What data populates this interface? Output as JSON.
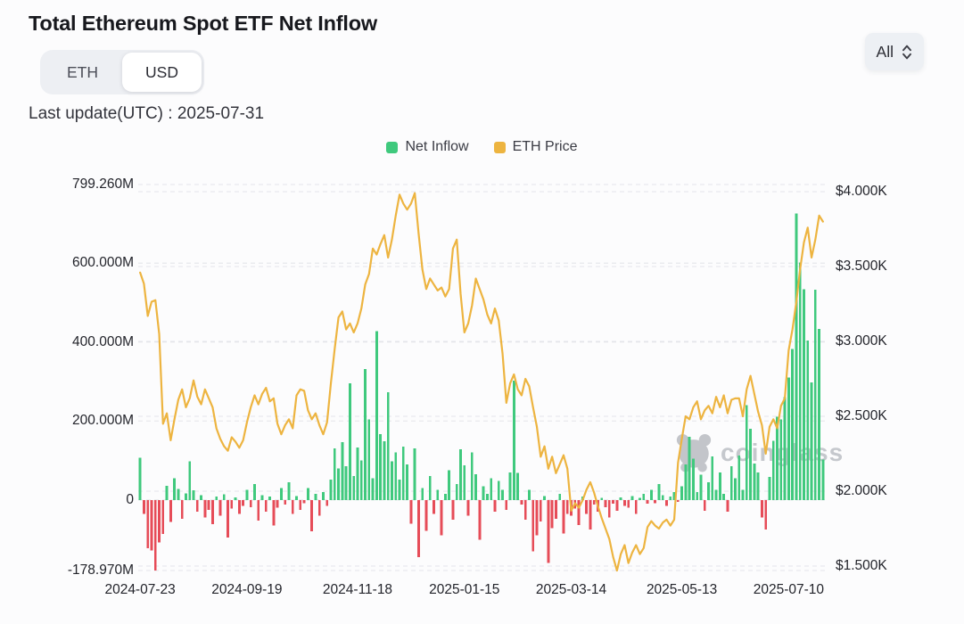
{
  "header": {
    "title": "Total Ethereum Spot ETF Net Inflow",
    "last_update": "Last update(UTC) : 2025-07-31",
    "currency_toggle": {
      "options": [
        "ETH",
        "USD"
      ],
      "selected": "USD"
    },
    "range_select": {
      "value": "All"
    }
  },
  "legend": [
    {
      "label": "Net Inflow",
      "color": "#3fc97d"
    },
    {
      "label": "ETH Price",
      "color": "#edb440"
    }
  ],
  "watermark": {
    "text": "coinglass"
  },
  "chart_data": {
    "type": "combo-bar-line",
    "title": "Total Ethereum Spot ETF Net Inflow",
    "x_axis": {
      "tick_labels": [
        "2024-07-23",
        "2024-09-19",
        "2024-11-18",
        "2025-01-15",
        "2025-03-14",
        "2025-05-13",
        "2025-07-10"
      ],
      "tick_indices": [
        0,
        28,
        57,
        85,
        113,
        142,
        170
      ],
      "note": "daily sessions from 2024-07-23 to 2025-07-31"
    },
    "left_axis": {
      "series": "Net Inflow",
      "unit": "USD, M = millions",
      "max": 799.26,
      "min": -178.97,
      "ticks": [
        {
          "label": "799.260M",
          "value": 799.26
        },
        {
          "label": "600.000M",
          "value": 600
        },
        {
          "label": "400.000M",
          "value": 400
        },
        {
          "label": "200.000M",
          "value": 200
        },
        {
          "label": "0",
          "value": 0
        },
        {
          "label": "-178.970M",
          "value": -178.97
        }
      ]
    },
    "right_axis": {
      "series": "ETH Price",
      "unit": "USD, K = thousands",
      "max": 4000,
      "min": 1500,
      "ticks": [
        {
          "label": "$4.000K",
          "value": 4000
        },
        {
          "label": "$3.500K",
          "value": 3500
        },
        {
          "label": "$3.000K",
          "value": 3000
        },
        {
          "label": "$2.500K",
          "value": 2500
        },
        {
          "label": "$2.000K",
          "value": 2000
        },
        {
          "label": "$1.500K",
          "value": 1500
        }
      ]
    },
    "grid": {
      "style": "dashed",
      "color": "#e3e5ea"
    },
    "series": [
      {
        "name": "Net Inflow",
        "type": "bar",
        "axis": "left",
        "unit": "USD millions",
        "color_positive": "#3fc97d",
        "color_negative": "#e64c58",
        "values": [
          107,
          -35,
          -122,
          -128,
          -179,
          -108,
          -86,
          36,
          -56,
          55,
          28,
          -48,
          16,
          98,
          24,
          -30,
          12,
          -45,
          -25,
          -62,
          8,
          -40,
          14,
          -95,
          -22,
          6,
          -35,
          -15,
          25,
          -18,
          40,
          -52,
          12,
          -30,
          8,
          -65,
          -20,
          30,
          -12,
          45,
          -35,
          10,
          -25,
          -8,
          30,
          -80,
          15,
          -40,
          20,
          -15,
          52,
          131,
          80,
          146,
          85,
          295,
          60,
          133,
          100,
          332,
          204,
          55,
          428,
          167,
          149,
          273,
          98,
          120,
          51,
          135,
          90,
          -60,
          130,
          -145,
          30,
          -78,
          60,
          -35,
          25,
          -90,
          15,
          75,
          -50,
          40,
          128,
          88,
          -40,
          120,
          65,
          -101,
          35,
          15,
          55,
          -30,
          48,
          26,
          -25,
          70,
          302,
          68,
          -12,
          -50,
          25,
          -130,
          -90,
          -55,
          10,
          -160,
          -72,
          -48,
          15,
          -85,
          -35,
          -40,
          -22,
          -64,
          8,
          -35,
          -75,
          -12,
          -30,
          5,
          -18,
          -45,
          -10,
          -28,
          6,
          -15,
          -20,
          10,
          -35,
          5,
          15,
          -10,
          25,
          -8,
          40,
          12,
          -15,
          8,
          20,
          -5,
          35,
          90,
          160,
          105,
          20,
          64,
          -28,
          45,
          110,
          25,
          70,
          15,
          -30,
          85,
          55,
          112,
          25,
          240,
          180,
          92,
          70,
          -45,
          -75,
          58,
          150,
          211,
          204,
          260,
          310,
          383,
          726,
          602,
          534,
          404,
          298,
          533,
          433,
          102
        ]
      },
      {
        "name": "ETH Price",
        "type": "line",
        "axis": "right",
        "unit": "USD",
        "color": "#edb440",
        "values": [
          3460,
          3385,
          3170,
          3265,
          3275,
          3050,
          2450,
          2520,
          2340,
          2480,
          2610,
          2680,
          2560,
          2620,
          2740,
          2630,
          2580,
          2680,
          2620,
          2560,
          2420,
          2350,
          2300,
          2270,
          2360,
          2330,
          2290,
          2340,
          2460,
          2560,
          2640,
          2580,
          2650,
          2690,
          2600,
          2620,
          2450,
          2380,
          2440,
          2480,
          2420,
          2640,
          2680,
          2670,
          2540,
          2480,
          2520,
          2440,
          2380,
          2460,
          2720,
          2950,
          3160,
          3200,
          3080,
          3120,
          3060,
          3120,
          3220,
          3380,
          3450,
          3620,
          3580,
          3650,
          3710,
          3560,
          3680,
          3840,
          3980,
          3920,
          3880,
          3920,
          3990,
          3720,
          3480,
          3350,
          3420,
          3380,
          3340,
          3360,
          3300,
          3350,
          3620,
          3680,
          3320,
          3060,
          3120,
          3240,
          3420,
          3350,
          3280,
          3180,
          3120,
          3220,
          3140,
          2920,
          2590,
          2720,
          2780,
          2680,
          2640,
          2750,
          2700,
          2560,
          2430,
          2230,
          2300,
          2150,
          2230,
          2120,
          2180,
          2240,
          2150,
          1870,
          1920,
          1890,
          1940,
          2010,
          2060,
          1990,
          1900,
          1820,
          1750,
          1680,
          1560,
          1470,
          1580,
          1640,
          1520,
          1590,
          1640,
          1580,
          1620,
          1760,
          1800,
          1770,
          1750,
          1790,
          1810,
          1770,
          1810,
          2190,
          2350,
          2500,
          2480,
          2560,
          2600,
          2480,
          2540,
          2570,
          2520,
          2630,
          2560,
          2640,
          2520,
          2610,
          2620,
          2620,
          2500,
          2680,
          2770,
          2650,
          2530,
          2440,
          2250,
          2430,
          2480,
          2420,
          2570,
          2620,
          2940,
          3080,
          3260,
          3480,
          3660,
          3760,
          3560,
          3680,
          3840,
          3800
        ]
      }
    ]
  }
}
